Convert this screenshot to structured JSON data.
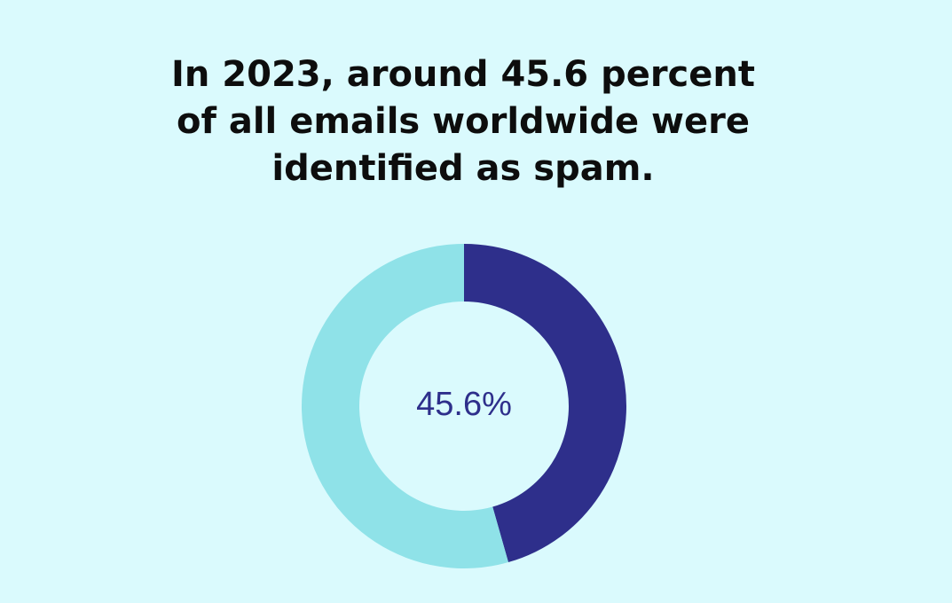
{
  "chart_data": {
    "type": "donut",
    "title": [
      "In 2023, around 45.6 percent",
      "of all emails worldwide were",
      "identified as spam."
    ],
    "values": [
      45.6,
      54.4
    ],
    "value_labels": [
      "45.6%",
      null
    ],
    "colors": [
      "#2e2f8b",
      "#8fe2e8"
    ]
  }
}
